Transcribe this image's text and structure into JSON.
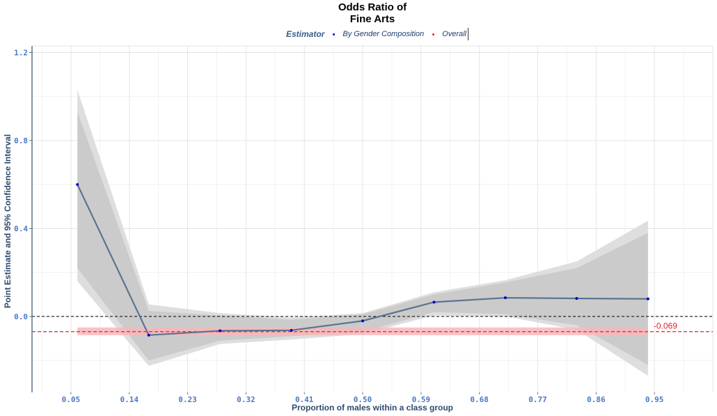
{
  "chart_data": {
    "type": "line",
    "title_line1": "Odds Ratio of",
    "title_line2": "Fine Arts",
    "xlabel": "Proportion of males within a class group",
    "ylabel": "Point Estimate and 95% Confidence Interval",
    "xlim": [
      -0.01,
      1.04
    ],
    "ylim": [
      -0.345,
      1.23
    ],
    "x_ticks": [
      "0.05",
      "0.14",
      "0.23",
      "0.32",
      "0.41",
      "0.50",
      "0.59",
      "0.68",
      "0.77",
      "0.86",
      "0.95"
    ],
    "y_ticks": [
      0.0,
      0.4,
      0.8,
      1.2
    ],
    "y_tick_labels": [
      "0.0",
      "0.4",
      "0.8",
      "1.2"
    ],
    "legend": {
      "title": "Estimator",
      "position": "top",
      "entries": [
        {
          "label": "By Gender Composition",
          "color": "#0000cc"
        },
        {
          "label": "Overall",
          "color": "#e8202a"
        }
      ]
    },
    "series": [
      {
        "name": "By Gender Composition",
        "x": [
          0.06,
          0.17,
          0.28,
          0.39,
          0.5,
          0.61,
          0.72,
          0.83,
          0.94
        ],
        "y": [
          0.6,
          -0.085,
          -0.065,
          -0.063,
          -0.02,
          0.065,
          0.085,
          0.082,
          0.08
        ],
        "ci90_low": [
          0.22,
          -0.2,
          -0.11,
          -0.09,
          -0.07,
          0.02,
          0.01,
          -0.04,
          -0.22
        ],
        "ci90_high": [
          0.93,
          0.025,
          0.005,
          -0.015,
          0.01,
          0.1,
          0.155,
          0.22,
          0.38
        ],
        "ci95_low": [
          0.16,
          -0.225,
          -0.125,
          -0.105,
          -0.08,
          0.005,
          0.0,
          -0.06,
          -0.27
        ],
        "ci95_high": [
          1.03,
          0.055,
          0.015,
          -0.005,
          0.015,
          0.11,
          0.165,
          0.25,
          0.435
        ]
      }
    ],
    "overall": {
      "value": -0.069,
      "label": "-0.069",
      "ci_low": -0.085,
      "ci_high": -0.05,
      "x_range": [
        0.06,
        0.94
      ]
    },
    "reference_line": 0.0,
    "grid": true,
    "colors": {
      "line": "#5a7490",
      "point": "#0000cc",
      "band_outer": "#dcdcdc",
      "band_inner": "#c8c8c8",
      "overall": "#e8202a",
      "overall_band": "#f7b7bb"
    }
  }
}
